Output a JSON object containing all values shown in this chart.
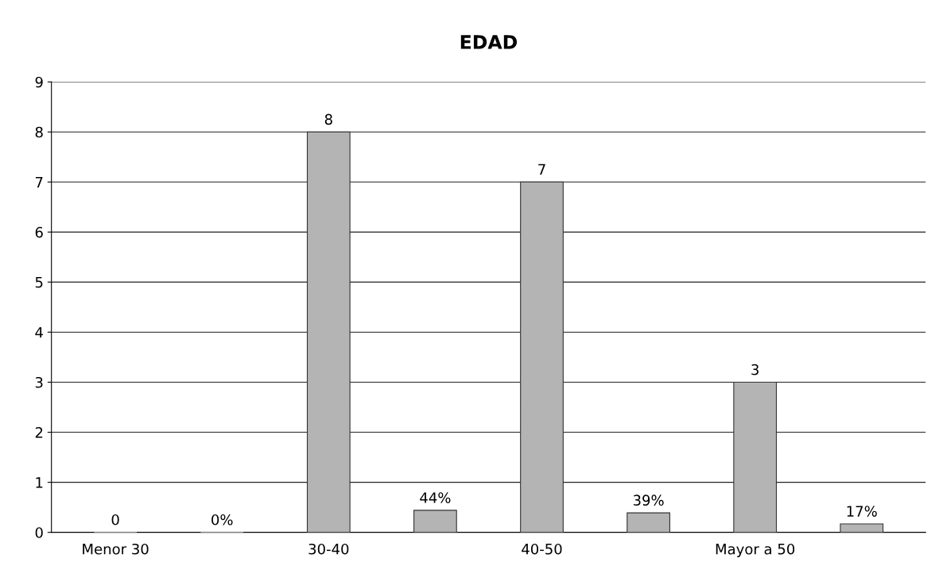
{
  "chart_data": {
    "type": "bar",
    "title": "EDAD",
    "categories": [
      "Menor 30",
      "30-40",
      "40-50",
      "Mayor a 50"
    ],
    "series": [
      {
        "color": "#b4b4b4",
        "values": [
          0,
          8,
          7,
          3
        ],
        "value_labels": [
          "0",
          "8",
          "7",
          "3"
        ]
      },
      {
        "color": "#b4b4b4",
        "values": [
          0,
          0.44,
          0.39,
          0.17
        ],
        "value_labels": [
          "0%",
          "44%",
          "39%",
          "17%"
        ]
      }
    ],
    "ylim": [
      0,
      9
    ],
    "yticks": [
      0,
      1,
      2,
      3,
      4,
      5,
      6,
      7,
      8,
      9
    ],
    "grid": "y",
    "legend": false
  }
}
